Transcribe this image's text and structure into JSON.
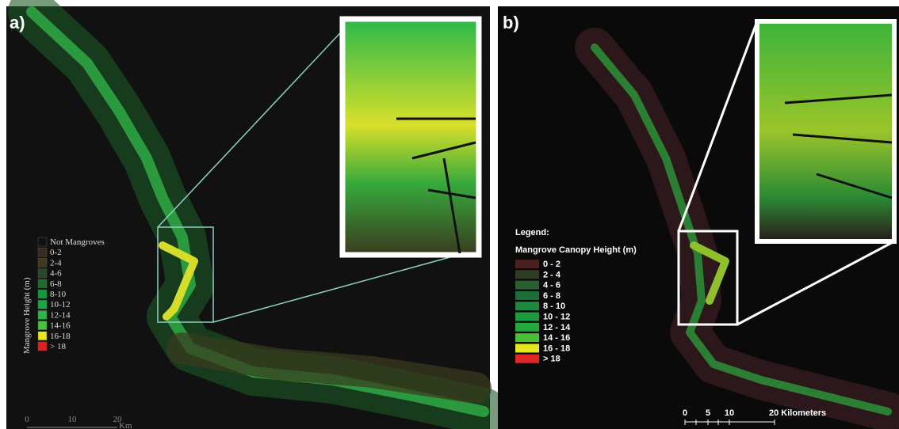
{
  "panels": [
    {
      "label": "a)",
      "legend": {
        "title": "Mangrove Height (m)",
        "items": [
          {
            "label": "Not Mangroves",
            "color": "#111111"
          },
          {
            "label": "0-2",
            "color": "#3a2a1e"
          },
          {
            "label": "2-4",
            "color": "#3d3a1c"
          },
          {
            "label": "4-6",
            "color": "#254a25"
          },
          {
            "label": "6-8",
            "color": "#1f6b2f"
          },
          {
            "label": "8-10",
            "color": "#159a3a"
          },
          {
            "label": "10-12",
            "color": "#18a845"
          },
          {
            "label": "12-14",
            "color": "#2bb84a"
          },
          {
            "label": "14-16",
            "color": "#46c43a"
          },
          {
            "label": "16-18",
            "color": "#e8e81a"
          },
          {
            "label": "> 18",
            "color": "#e02020"
          }
        ]
      },
      "scale": {
        "ticks": [
          "0",
          "10",
          "20"
        ],
        "unit": "Km"
      }
    },
    {
      "label": "b)",
      "legend": {
        "heading": "Legend:",
        "title": "Mangrove Canopy Height (m)",
        "items": [
          {
            "label": "0 - 2",
            "color": "#4a1f22"
          },
          {
            "label": "2 - 4",
            "color": "#2f3b22"
          },
          {
            "label": "4 - 6",
            "color": "#2b5e30"
          },
          {
            "label": "6 - 8",
            "color": "#1f6e38"
          },
          {
            "label": "8 - 10",
            "color": "#1b8a3e"
          },
          {
            "label": "10 - 12",
            "color": "#1e9a3e"
          },
          {
            "label": "12 - 14",
            "color": "#25a83c"
          },
          {
            "label": "14 - 16",
            "color": "#4cc034"
          },
          {
            "label": "16 - 18",
            "color": "#e6e61c"
          },
          {
            "label": "> 18",
            "color": "#e02828"
          }
        ]
      },
      "scale": {
        "ticks": [
          "0",
          "5",
          "10",
          "20 Kilometers"
        ]
      }
    }
  ]
}
